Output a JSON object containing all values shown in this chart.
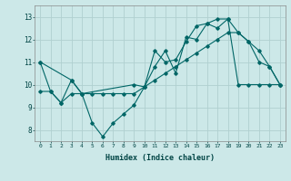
{
  "title": "",
  "xlabel": "Humidex (Indice chaleur)",
  "ylabel": "",
  "background_color": "#cce8e8",
  "grid_color": "#b0d0d0",
  "line_color": "#006666",
  "xlim": [
    -0.5,
    23.5
  ],
  "ylim": [
    7.5,
    13.5
  ],
  "xticks": [
    0,
    1,
    2,
    3,
    4,
    5,
    6,
    7,
    8,
    9,
    10,
    11,
    12,
    13,
    14,
    15,
    16,
    17,
    18,
    19,
    20,
    21,
    22,
    23
  ],
  "yticks": [
    8,
    9,
    10,
    11,
    12,
    13
  ],
  "line1_x": [
    0,
    1,
    2,
    3,
    4,
    5,
    6,
    7,
    8,
    9,
    10,
    11,
    12,
    13,
    14,
    15,
    16,
    17,
    18,
    19,
    20,
    21,
    22,
    23
  ],
  "line1_y": [
    11.0,
    9.7,
    9.2,
    10.2,
    9.6,
    8.3,
    7.7,
    8.3,
    8.7,
    9.1,
    9.9,
    11.5,
    11.0,
    11.1,
    11.9,
    12.6,
    12.7,
    12.9,
    12.9,
    12.3,
    11.9,
    11.0,
    10.8,
    10.0
  ],
  "line2_x": [
    0,
    3,
    4,
    9,
    10,
    11,
    12,
    13,
    14,
    15,
    16,
    17,
    18,
    19,
    20,
    21,
    22,
    23
  ],
  "line2_y": [
    11.0,
    10.2,
    9.6,
    10.0,
    9.9,
    10.8,
    11.5,
    10.5,
    12.1,
    12.0,
    12.7,
    12.5,
    12.9,
    10.0,
    10.0,
    10.0,
    10.0,
    10.0
  ],
  "line3_x": [
    0,
    1,
    2,
    3,
    4,
    5,
    6,
    7,
    8,
    9,
    10,
    11,
    12,
    13,
    14,
    15,
    16,
    17,
    18,
    19,
    20,
    21,
    22,
    23
  ],
  "line3_y": [
    9.7,
    9.7,
    9.2,
    9.6,
    9.6,
    9.6,
    9.6,
    9.6,
    9.6,
    9.6,
    9.9,
    10.2,
    10.5,
    10.8,
    11.1,
    11.4,
    11.7,
    12.0,
    12.3,
    12.3,
    11.9,
    11.5,
    10.8,
    10.0
  ]
}
